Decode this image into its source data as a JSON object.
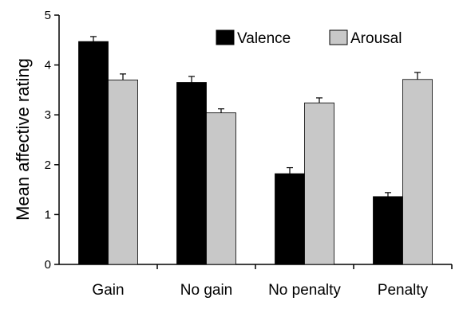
{
  "chart_data": {
    "type": "bar",
    "title": "",
    "xlabel": "",
    "ylabel": "Mean affective rating",
    "ylim": [
      0,
      5
    ],
    "yticks": [
      0,
      1,
      2,
      3,
      4,
      5
    ],
    "grid": false,
    "legend_position": "top-right",
    "categories": [
      "Gain",
      "No gain",
      "No penalty",
      "Penalty"
    ],
    "series": [
      {
        "name": "Valence",
        "color": "#000000",
        "values": [
          4.47,
          3.65,
          1.82,
          1.36
        ],
        "errors": [
          0.1,
          0.12,
          0.12,
          0.08
        ]
      },
      {
        "name": "Arousal",
        "color": "#c8c8c8",
        "values": [
          3.7,
          3.04,
          3.24,
          3.71
        ],
        "errors": [
          0.12,
          0.08,
          0.1,
          0.14
        ]
      }
    ]
  }
}
